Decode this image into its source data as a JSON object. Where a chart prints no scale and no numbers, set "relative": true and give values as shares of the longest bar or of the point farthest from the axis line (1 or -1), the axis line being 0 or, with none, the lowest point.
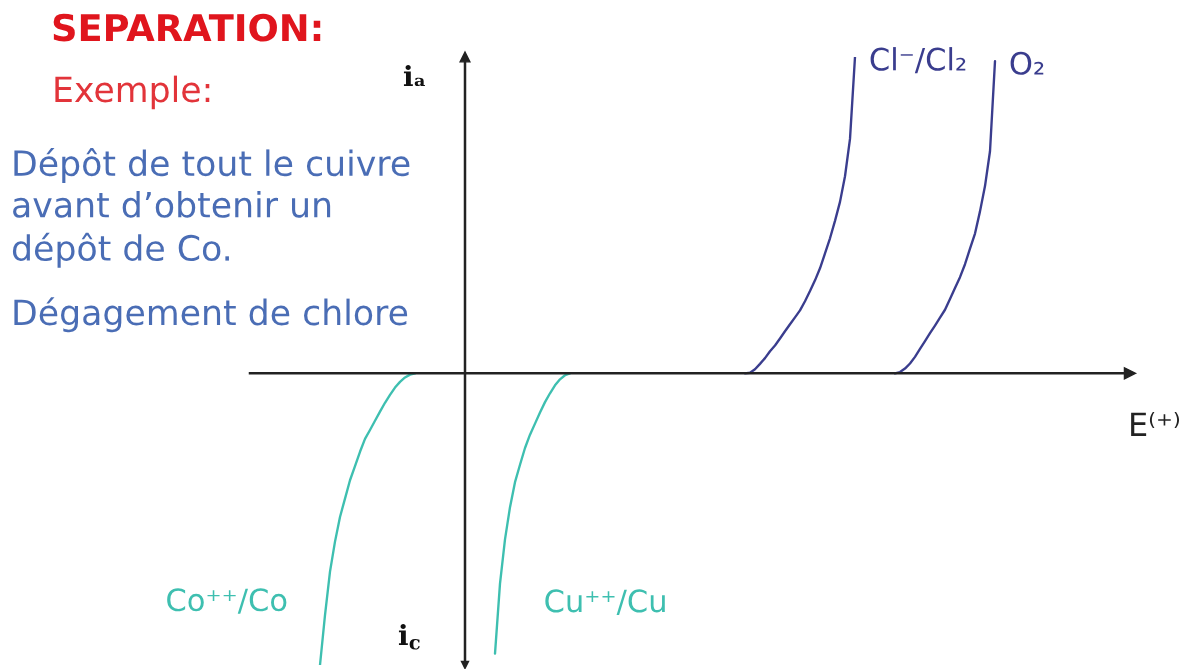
{
  "chart_data": {
    "type": "line",
    "relative": true,
    "title": "SEPARATION:",
    "subtitle": "Exemple:",
    "xlabel": "E⁽⁺⁾",
    "ylabel": "iₐ",
    "annotations": [
      "Dépôt de tout le cuivre\navant d’obtenir un\ndépôt de Co.",
      "Dégagement de chlore",
      "i$_{c}$"
    ],
    "tick_labels": false,
    "line_style": "solid",
    "categories": [
      null,
      null,
      null,
      null,
      null,
      null,
      null,
      null,
      null,
      null,
      null,
      null,
      null,
      null,
      null,
      null,
      null,
      null,
      null,
      null,
      null,
      null,
      null,
      null,
      null,
      null,
      null,
      null,
      null,
      null,
      null,
      null,
      null,
      null,
      null,
      null,
      null,
      null,
      null,
      null,
      null,
      null,
      null,
      null,
      null,
      null,
      null,
      null,
      null,
      null,
      null,
      null,
      null,
      null,
      null,
      null,
      null,
      null,
      null,
      null,
      null,
      null,
      null,
      null,
      null,
      null,
      null,
      null,
      null,
      null,
      null,
      null,
      null,
      null,
      null,
      null,
      null,
      null,
      null,
      null,
      null,
      null,
      null,
      null,
      null,
      null,
      null,
      null,
      null,
      null,
      null,
      null,
      null,
      null,
      null,
      null,
      null,
      null,
      null,
      null,
      null,
      null,
      null,
      null,
      null,
      null,
      null,
      null,
      null,
      null,
      null,
      null,
      null,
      null,
      null,
      null,
      null,
      null,
      null,
      null,
      null,
      null,
      null,
      null,
      null,
      null,
      null,
      null,
      null,
      null,
      null,
      null,
      null,
      null,
      null,
      null,
      null,
      null,
      null,
      null,
      null,
      null,
      null,
      null,
      null,
      null,
      null,
      null,
      null,
      null,
      null,
      null,
      null,
      null,
      null,
      null,
      null,
      null,
      null,
      null,
      null,
      null,
      null,
      null,
      null,
      null,
      null,
      null,
      null,
      null,
      null,
      null,
      null,
      null,
      null,
      null,
      null
    ],
    "series": [
      {
        "name": "Co⁺⁺/Co",
        "color": "#3ebfb0",
        "values": [
          null,
          null,
          null,
          null,
          null,
          null,
          null,
          null,
          null,
          null,
          null,
          null,
          null,
          null,
          -0.922,
          -0.764,
          -0.627,
          -0.532,
          -0.454,
          -0.396,
          -0.338,
          -0.293,
          -0.248,
          -0.207,
          -0.179,
          -0.15,
          -0.121,
          -0.093,
          -0.068,
          -0.045,
          -0.027,
          -0.013,
          -0.004,
          0,
          null,
          null,
          null,
          null,
          null,
          null,
          null,
          null,
          null,
          null,
          null,
          null,
          null,
          null,
          null,
          null,
          null,
          null,
          null,
          null,
          null,
          null,
          null,
          null,
          null,
          null,
          null,
          null,
          null,
          null,
          null,
          null,
          null,
          null,
          null,
          null,
          null,
          null,
          null,
          null,
          null,
          null,
          null,
          null,
          null,
          null,
          null,
          null,
          null,
          null,
          null,
          null,
          null,
          null,
          null,
          null,
          null,
          null,
          null,
          null,
          null,
          null,
          null,
          null,
          null,
          null,
          null,
          null,
          null,
          null,
          null,
          null,
          null,
          null,
          null,
          null,
          null,
          null,
          null,
          null,
          null,
          null,
          null,
          null,
          null,
          null,
          null,
          null,
          null,
          null,
          null,
          null,
          null,
          null,
          null,
          null,
          null,
          null,
          null,
          null,
          null,
          null,
          null,
          null,
          null,
          null,
          null,
          null,
          null,
          null,
          null,
          null,
          null,
          null,
          null,
          null,
          null,
          null,
          null,
          null,
          null,
          null,
          null,
          null,
          null,
          null,
          null,
          null,
          null,
          null,
          null,
          null,
          null,
          null,
          null,
          null,
          null,
          null,
          null,
          null,
          null,
          null,
          null
        ]
      },
      {
        "name": "Cu⁺⁺/Cu",
        "color": "#3ebfb0",
        "values": [
          null,
          null,
          null,
          null,
          null,
          null,
          null,
          null,
          null,
          null,
          null,
          null,
          null,
          null,
          null,
          null,
          null,
          null,
          null,
          null,
          null,
          null,
          null,
          null,
          null,
          null,
          null,
          null,
          null,
          null,
          null,
          null,
          null,
          null,
          null,
          null,
          null,
          null,
          null,
          null,
          null,
          null,
          null,
          null,
          null,
          null,
          null,
          null,
          null,
          -0.886,
          -0.665,
          -0.525,
          -0.423,
          -0.344,
          -0.289,
          -0.236,
          -0.194,
          -0.159,
          -0.124,
          -0.091,
          -0.063,
          -0.038,
          -0.019,
          -0.006,
          0,
          null,
          null,
          null,
          null,
          null,
          null,
          null,
          null,
          null,
          null,
          null,
          null,
          null,
          null,
          null,
          null,
          null,
          null,
          null,
          null,
          null,
          null,
          null,
          null,
          null,
          null,
          null,
          null,
          null,
          null,
          null,
          null,
          null,
          null,
          null,
          null,
          null,
          null,
          null,
          null,
          null,
          null,
          null,
          null,
          null,
          null,
          null,
          null,
          null,
          null,
          null,
          null,
          null,
          null,
          null,
          null,
          null,
          null,
          null,
          null,
          null,
          null,
          null,
          null,
          null,
          null,
          null,
          null,
          null,
          null,
          null,
          null,
          null,
          null,
          null,
          null,
          null,
          null,
          null,
          null,
          null,
          null,
          null,
          null,
          null,
          null,
          null,
          null,
          null,
          null,
          null,
          null,
          null,
          null,
          null,
          null,
          null,
          null,
          null,
          null,
          null,
          null,
          null,
          null,
          null,
          null,
          null,
          null,
          null,
          null,
          null,
          null
        ]
      },
      {
        "name": "Cl⁻/Cl₂",
        "color": "#3a3d8e",
        "values": [
          null,
          null,
          null,
          null,
          null,
          null,
          null,
          null,
          null,
          null,
          null,
          null,
          null,
          null,
          null,
          null,
          null,
          null,
          null,
          null,
          null,
          null,
          null,
          null,
          null,
          null,
          null,
          null,
          null,
          null,
          null,
          null,
          null,
          null,
          null,
          null,
          null,
          null,
          null,
          null,
          null,
          null,
          null,
          null,
          null,
          null,
          null,
          null,
          null,
          null,
          null,
          null,
          null,
          null,
          null,
          null,
          null,
          null,
          null,
          null,
          null,
          null,
          null,
          null,
          null,
          null,
          null,
          null,
          null,
          null,
          null,
          null,
          null,
          null,
          null,
          null,
          null,
          null,
          null,
          null,
          null,
          null,
          null,
          null,
          null,
          null,
          null,
          null,
          null,
          null,
          null,
          null,
          null,
          null,
          null,
          null,
          null,
          null,
          null,
          0,
          0.002,
          0.013,
          0.03,
          0.048,
          0.07,
          0.088,
          0.11,
          0.133,
          0.155,
          0.177,
          0.199,
          0.228,
          0.26,
          0.294,
          0.332,
          0.379,
          0.427,
          0.482,
          0.542,
          0.623,
          0.741,
          1,
          null,
          null,
          null,
          null,
          null,
          null,
          null,
          null,
          null,
          null,
          null,
          null,
          null,
          null,
          null,
          null,
          null,
          null,
          null,
          null,
          null,
          null,
          null,
          null,
          null,
          null,
          null,
          null,
          null,
          null,
          null,
          null,
          null,
          null,
          null,
          null,
          null,
          null,
          null,
          null,
          null,
          null,
          null,
          null,
          null,
          null,
          null,
          null,
          null,
          null,
          null,
          null,
          null,
          null,
          null
        ]
      },
      {
        "name": "O₂",
        "color": "#3a3d8e",
        "values": [
          null,
          null,
          null,
          null,
          null,
          null,
          null,
          null,
          null,
          null,
          null,
          null,
          null,
          null,
          null,
          null,
          null,
          null,
          null,
          null,
          null,
          null,
          null,
          null,
          null,
          null,
          null,
          null,
          null,
          null,
          null,
          null,
          null,
          null,
          null,
          null,
          null,
          null,
          null,
          null,
          null,
          null,
          null,
          null,
          null,
          null,
          null,
          null,
          null,
          null,
          null,
          null,
          null,
          null,
          null,
          null,
          null,
          null,
          null,
          null,
          null,
          null,
          null,
          null,
          null,
          null,
          null,
          null,
          null,
          null,
          null,
          null,
          null,
          null,
          null,
          null,
          null,
          null,
          null,
          null,
          null,
          null,
          null,
          null,
          null,
          null,
          null,
          null,
          null,
          null,
          null,
          null,
          null,
          null,
          null,
          null,
          null,
          null,
          null,
          null,
          null,
          null,
          null,
          null,
          null,
          null,
          null,
          null,
          null,
          null,
          null,
          null,
          null,
          null,
          null,
          null,
          null,
          null,
          null,
          null,
          null,
          null,
          null,
          null,
          null,
          null,
          null,
          null,
          null,
          0,
          0.004,
          0.015,
          0.031,
          0.052,
          0.077,
          0.102,
          0.127,
          0.151,
          0.176,
          0.201,
          0.235,
          0.27,
          0.304,
          0.345,
          0.394,
          0.442,
          0.512,
          0.592,
          0.702,
          0.987,
          null,
          null,
          null,
          null,
          null,
          null,
          null,
          null,
          null,
          null,
          null,
          null,
          null,
          null,
          null,
          null,
          null,
          null,
          null,
          null,
          null,
          null,
          null,
          null,
          null,
          null,
          null
        ]
      }
    ]
  }
}
